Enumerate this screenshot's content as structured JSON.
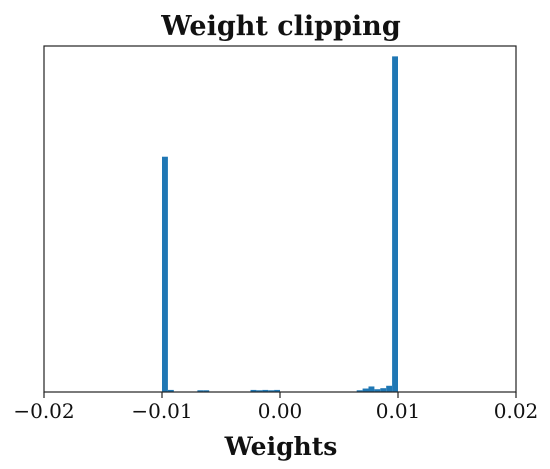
{
  "chart_data": {
    "type": "bar",
    "title": "Weight clipping",
    "xlabel": "Weights",
    "ylabel": "",
    "xlim": [
      -0.02,
      0.02
    ],
    "ylim": [
      0,
      1.0
    ],
    "x_ticks": [
      -0.02,
      -0.01,
      0.0,
      0.01,
      0.02
    ],
    "x_tick_labels": [
      "−0.02",
      "−0.01",
      "0.00",
      "0.01",
      "0.02"
    ],
    "y_ticks_visible": false,
    "grid": false,
    "bar_color": "#1f77b4",
    "bin_width": 0.0005,
    "bins": [
      {
        "x": -0.00975,
        "value": 0.68
      },
      {
        "x": -0.00925,
        "value": 0.006
      },
      {
        "x": -0.00675,
        "value": 0.005
      },
      {
        "x": -0.00625,
        "value": 0.005
      },
      {
        "x": -0.00225,
        "value": 0.006
      },
      {
        "x": -0.00175,
        "value": 0.005
      },
      {
        "x": -0.00125,
        "value": 0.006
      },
      {
        "x": -0.00075,
        "value": 0.005
      },
      {
        "x": -0.00025,
        "value": 0.006
      },
      {
        "x": 0.00675,
        "value": 0.005
      },
      {
        "x": 0.00725,
        "value": 0.01
      },
      {
        "x": 0.00775,
        "value": 0.016
      },
      {
        "x": 0.00825,
        "value": 0.008
      },
      {
        "x": 0.00875,
        "value": 0.011
      },
      {
        "x": 0.00925,
        "value": 0.018
      },
      {
        "x": 0.00975,
        "value": 0.97
      }
    ]
  }
}
